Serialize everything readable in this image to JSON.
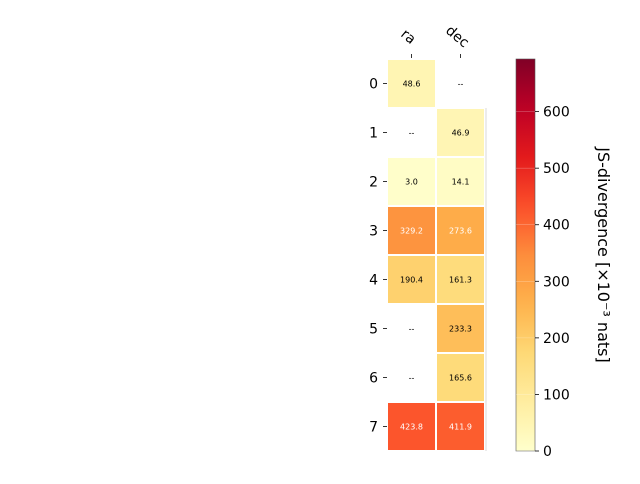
{
  "chart_data": {
    "type": "heatmap",
    "columns": [
      "ra",
      "dec"
    ],
    "rows": [
      "0",
      "1",
      "2",
      "3",
      "4",
      "5",
      "6",
      "7"
    ],
    "values": [
      [
        48.6,
        null
      ],
      [
        null,
        46.9
      ],
      [
        3.0,
        14.1
      ],
      [
        329.2,
        273.6
      ],
      [
        190.4,
        161.3
      ],
      [
        null,
        233.3
      ],
      [
        null,
        165.6
      ],
      [
        423.8,
        411.9
      ]
    ],
    "cell_labels": [
      [
        "48.6",
        "--"
      ],
      [
        "--",
        "46.9"
      ],
      [
        "3.0",
        "14.1"
      ],
      [
        "329.2",
        "273.6"
      ],
      [
        "190.4",
        "161.3"
      ],
      [
        "--",
        "233.3"
      ],
      [
        "--",
        "165.6"
      ],
      [
        "423.8",
        "411.9"
      ]
    ],
    "colorbar": {
      "label": "JS-divergence [×10⁻³ nats]",
      "min": 0,
      "max": 693,
      "ticks": [
        0,
        100,
        200,
        300,
        400,
        500,
        600
      ],
      "colormap": "YlOrRd"
    },
    "grid": false,
    "legend": "none"
  }
}
